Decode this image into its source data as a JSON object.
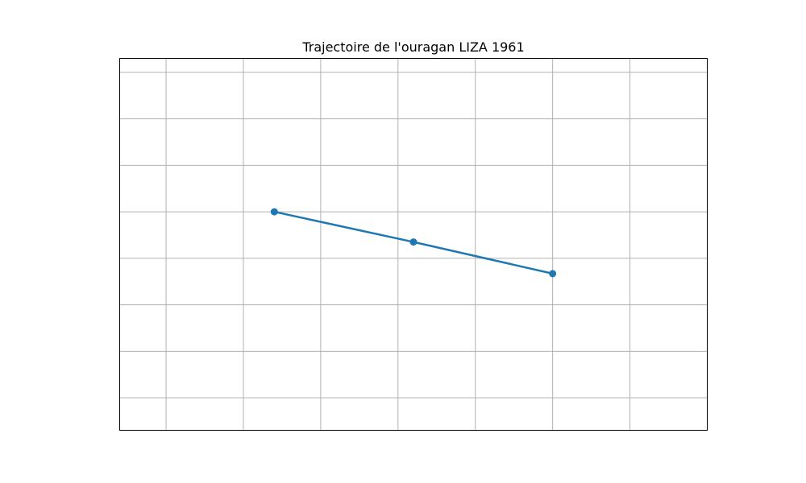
{
  "chart_data": {
    "type": "line",
    "title": "Trajectoire de l'ouragan LIZA 1961",
    "xlabel": "",
    "ylabel": "",
    "grid": true,
    "legend": "none",
    "x_tick_labels_shown": false,
    "y_tick_labels_shown": false,
    "xlim": [
      -1.5,
      6.1
    ],
    "ylim": [
      -2.7,
      5.3
    ],
    "x_gridlines": [
      -0.9,
      0.1,
      1.1,
      2.1,
      3.1,
      4.1,
      5.1
    ],
    "y_gridlines": [
      -2,
      -1,
      0,
      1,
      2,
      3,
      4,
      5
    ],
    "series": [
      {
        "name": "",
        "color": "#1f77b4",
        "marker": "circle",
        "points": [
          {
            "x": 0.5,
            "y": 2.0
          },
          {
            "x": 2.3,
            "y": 1.35
          },
          {
            "x": 4.1,
            "y": 0.67
          }
        ]
      }
    ]
  }
}
